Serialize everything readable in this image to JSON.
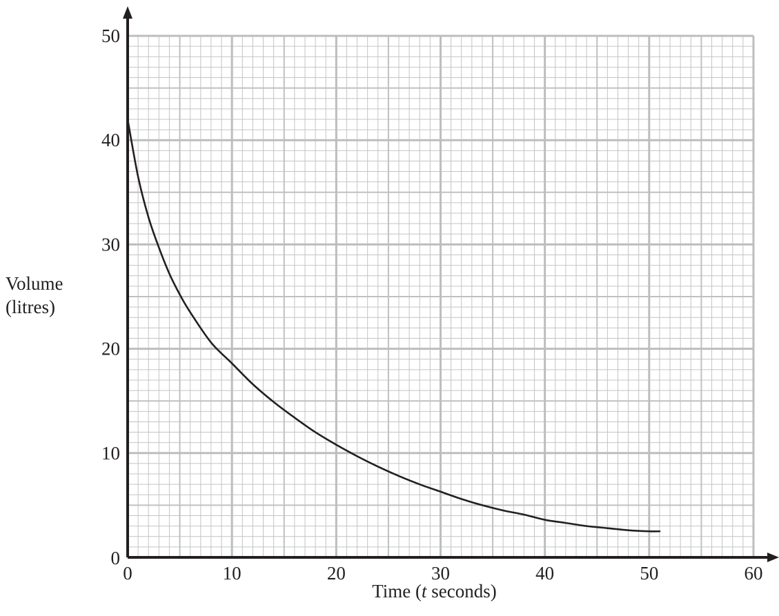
{
  "chart_data": {
    "type": "line",
    "title": "",
    "xlabel_prefix": "Time (",
    "xlabel_var": "t",
    "xlabel_suffix": " seconds)",
    "ylabel_line1": "Volume",
    "ylabel_line2": "(litres)",
    "xlim": [
      0,
      60
    ],
    "ylim": [
      0,
      50
    ],
    "x_ticks": [
      "0",
      "10",
      "20",
      "30",
      "40",
      "50",
      "60"
    ],
    "y_ticks": [
      "0",
      "10",
      "20",
      "30",
      "40",
      "50"
    ],
    "grid": true,
    "series": [
      {
        "x": [
          0,
          1,
          2,
          3,
          4,
          5,
          6,
          8,
          10,
          12,
          14,
          16,
          18,
          20,
          22,
          24,
          26,
          28,
          30,
          32,
          34,
          36,
          38,
          40,
          42,
          44,
          46,
          48,
          50,
          51
        ],
        "y": [
          42,
          36.5,
          32.6,
          29.7,
          27.2,
          25.2,
          23.5,
          20.6,
          18.6,
          16.6,
          14.9,
          13.4,
          12.0,
          10.8,
          9.7,
          8.7,
          7.8,
          7.0,
          6.3,
          5.6,
          5.0,
          4.5,
          4.1,
          3.6,
          3.3,
          3.0,
          2.8,
          2.6,
          2.5,
          2.5
        ]
      }
    ]
  }
}
